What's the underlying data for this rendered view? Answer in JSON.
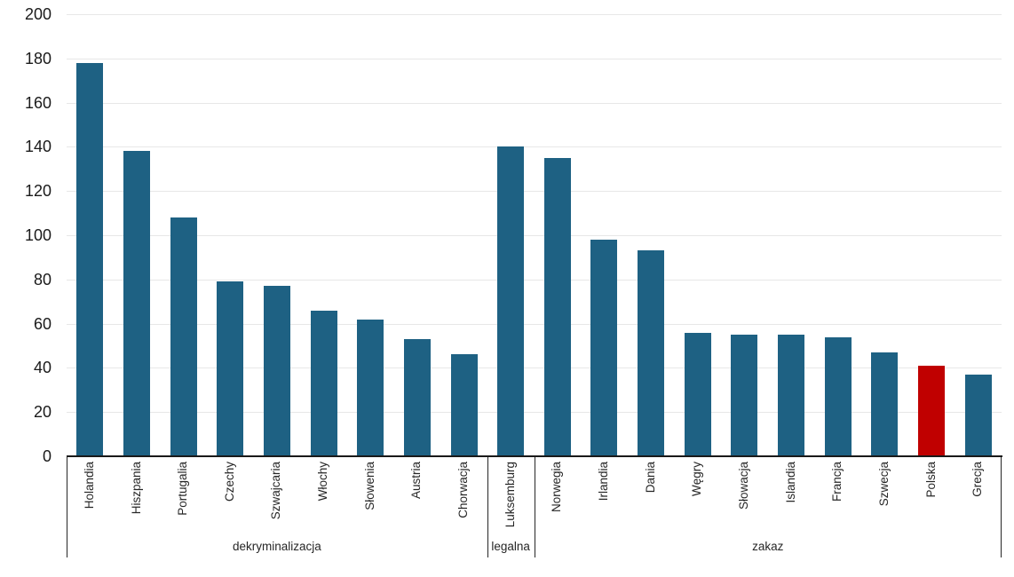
{
  "chart_data": {
    "type": "bar",
    "title": "",
    "xlabel": "",
    "ylabel": "",
    "ylim": [
      0,
      200
    ],
    "ytick_step": 20,
    "grid": true,
    "legend": "none",
    "colors": {
      "bar": "#1E6183",
      "highlight": "#C00000",
      "gridline": "#E7E7E7",
      "axis": "#1a1a1a",
      "separator": "#262626",
      "tick_text": "#1a1a1a",
      "label_text": "#262626"
    },
    "groups": [
      {
        "label": "dekryminalizacja",
        "bars": [
          {
            "category": "Holandia",
            "value": 178
          },
          {
            "category": "Hiszpania",
            "value": 138
          },
          {
            "category": "Portugalia",
            "value": 108
          },
          {
            "category": "Czechy",
            "value": 79
          },
          {
            "category": "Szwajcaria",
            "value": 77
          },
          {
            "category": "Włochy",
            "value": 66
          },
          {
            "category": "Słowenia",
            "value": 62
          },
          {
            "category": "Austria",
            "value": 53
          },
          {
            "category": "Chorwacja",
            "value": 46
          }
        ]
      },
      {
        "label": "legalna",
        "bars": [
          {
            "category": "Luksemburg",
            "value": 140
          }
        ]
      },
      {
        "label": "zakaz",
        "bars": [
          {
            "category": "Norwegia",
            "value": 135
          },
          {
            "category": "Irlandia",
            "value": 98
          },
          {
            "category": "Dania",
            "value": 93
          },
          {
            "category": "Węgry",
            "value": 56
          },
          {
            "category": "Słowacja",
            "value": 55
          },
          {
            "category": "Islandia",
            "value": 55
          },
          {
            "category": "Francja",
            "value": 54
          },
          {
            "category": "Szwecja",
            "value": 47
          },
          {
            "category": "Polska",
            "value": 41,
            "highlight": true
          },
          {
            "category": "Grecja",
            "value": 37
          }
        ]
      }
    ]
  }
}
